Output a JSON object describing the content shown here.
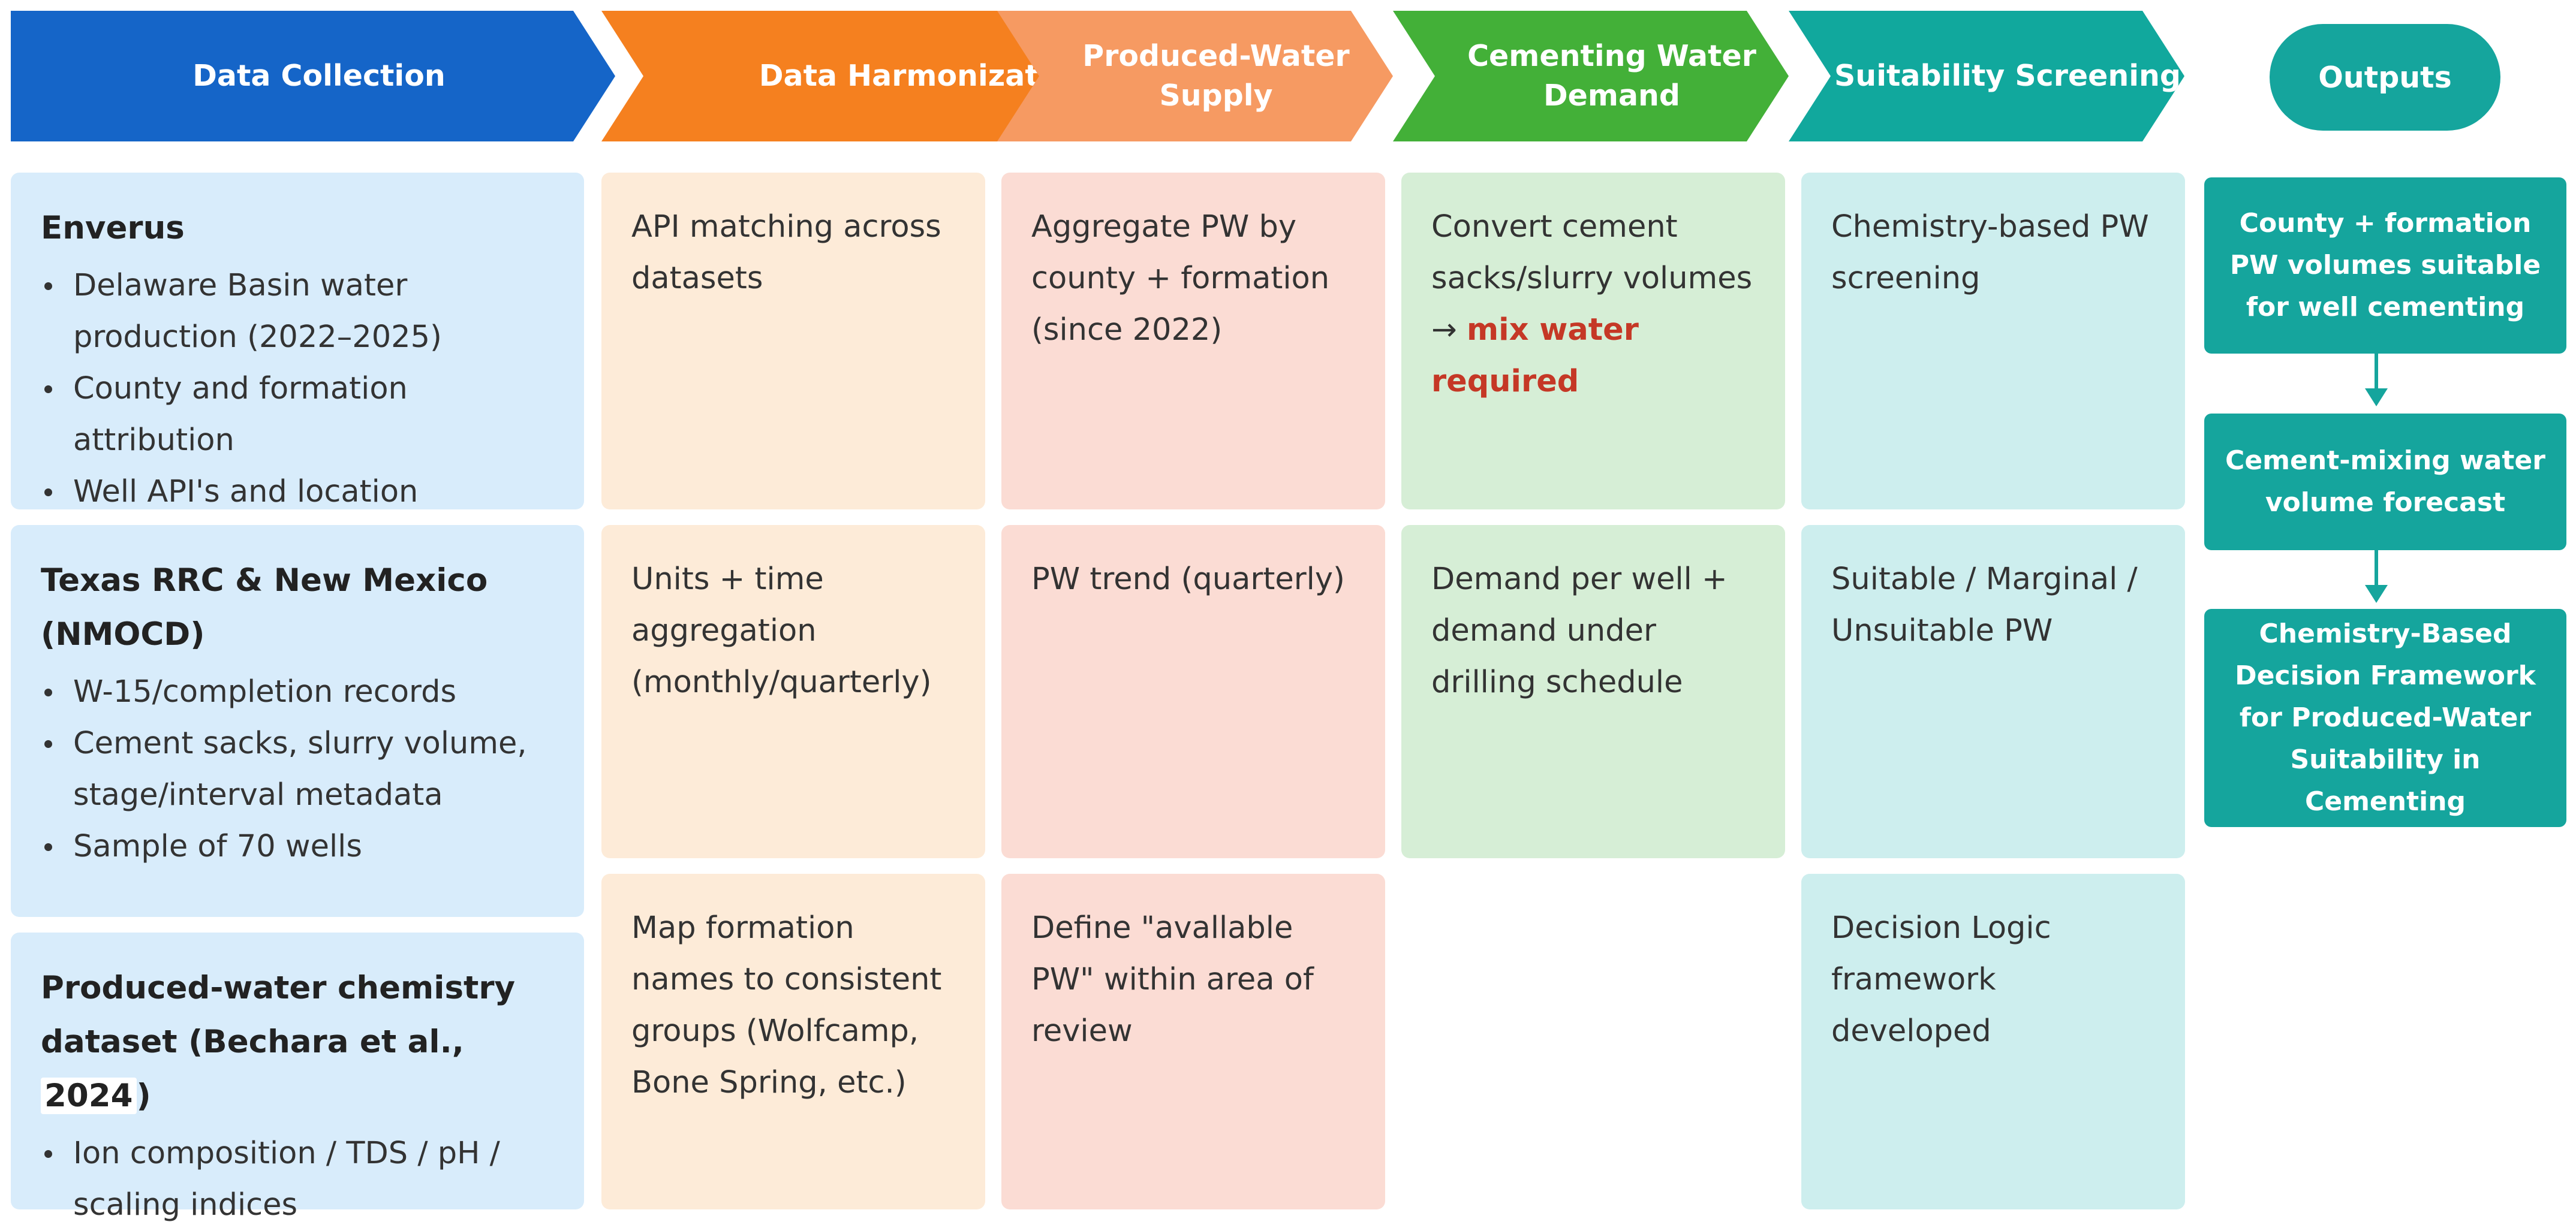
{
  "colors": {
    "stage1": "#1565c8",
    "stage2": "#f5801f",
    "stage3": "#f69a62",
    "stage4": "#43b038",
    "stage5": "#11a89d",
    "outputs": "#15a59d",
    "card1": "#d8ecfb",
    "card2": "#fdebd8",
    "card3": "#fbdcd4",
    "card4": "#d6eed6",
    "card5": "#cdeeee",
    "highlight": "#c53826"
  },
  "stages": [
    {
      "label": "Data Collection"
    },
    {
      "label": "Data Harmonization"
    },
    {
      "label": "Produced-Water Supply"
    },
    {
      "label": "Cementing Water Demand"
    },
    {
      "label": "Suitability Screening"
    }
  ],
  "outputs_header": "Outputs",
  "collection": [
    {
      "title": "Enverus",
      "bullets": [
        "Delaware Basin water production (2022–2025)",
        "County and formation attribution",
        "Well API's and location"
      ]
    },
    {
      "title": "Texas RRC & New Mexico (NMOCD)",
      "bullets": [
        "W-15/completion records",
        "Cement sacks, slurry volume, stage/interval metadata",
        "Sample of 70 wells"
      ]
    },
    {
      "title_main": "Produced-water chemistry dataset (Bechara et al.,",
      "title_year": "2024",
      "title_close": ")",
      "bullets": [
        "Ion composition / TDS / pH / scaling indices"
      ]
    }
  ],
  "harmonization": [
    "API matching across datasets",
    "Units + time aggregation (monthly/quarterly)",
    "Map formation names to consistent groups (Wolfcamp, Bone Spring, etc.)"
  ],
  "supply": [
    "Aggregate PW by county + formation (since 2022)",
    "PW trend (quarterly)",
    "Define \"avallable PW\" within area of review"
  ],
  "demand": {
    "card1_text": "Convert cement sacks/slurry volumes",
    "card1_arrow": "→",
    "card1_highlight": "mix water required",
    "card2": "Demand per well + demand under drilling schedule"
  },
  "screening": [
    "Chemistry-based PW screening",
    "Suitable / Marginal / Unsuitable PW",
    "Decision Logic framework developed"
  ],
  "outputs": [
    "County + formation PW volumes suitable for well cementing",
    "Cement-mixing water volume forecast",
    "Chemistry-Based Decision Framework for Produced-Water Suitability in Cementing"
  ]
}
